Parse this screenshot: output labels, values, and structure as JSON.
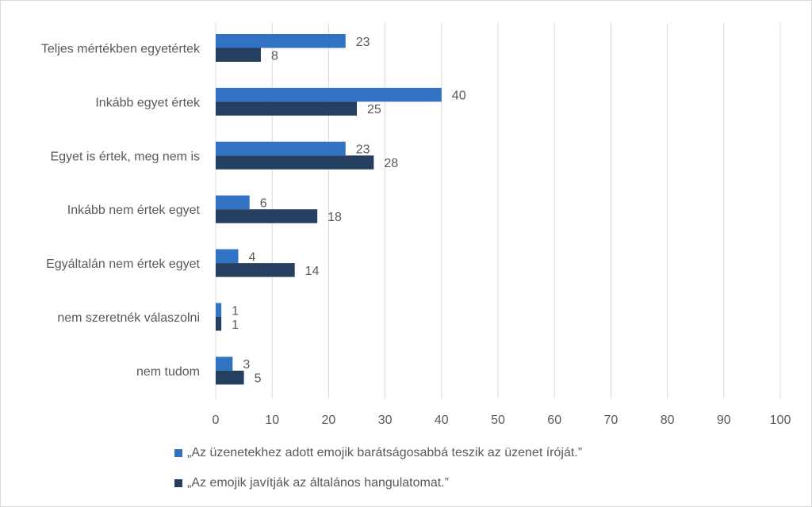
{
  "chart_data": {
    "type": "bar",
    "orientation": "horizontal",
    "categories": [
      "Teljes mértékben egyetértek",
      "Inkább egyet értek",
      "Egyet is értek, meg nem is",
      "Inkább nem értek egyet",
      "Egyáltalán nem értek egyet",
      "nem szeretnék válaszolni",
      "nem tudom"
    ],
    "series": [
      {
        "name": "„Az üzenetekhez adott emojik barátságosabbá teszik az üzenet íróját.”",
        "color": "#3272C2",
        "values": [
          23,
          40,
          23,
          6,
          4,
          1,
          3
        ]
      },
      {
        "name": "„Az emojik javítják az általános hangulatomat.”",
        "color": "#243F60",
        "values": [
          8,
          25,
          28,
          18,
          14,
          1,
          5
        ]
      }
    ],
    "xlim": [
      0,
      100
    ],
    "xticks": [
      "0",
      "10",
      "20",
      "30",
      "40",
      "50",
      "60",
      "70",
      "80",
      "90",
      "100"
    ],
    "grid": true,
    "legend_position": "bottom",
    "title": "",
    "xlabel": "",
    "ylabel": ""
  }
}
